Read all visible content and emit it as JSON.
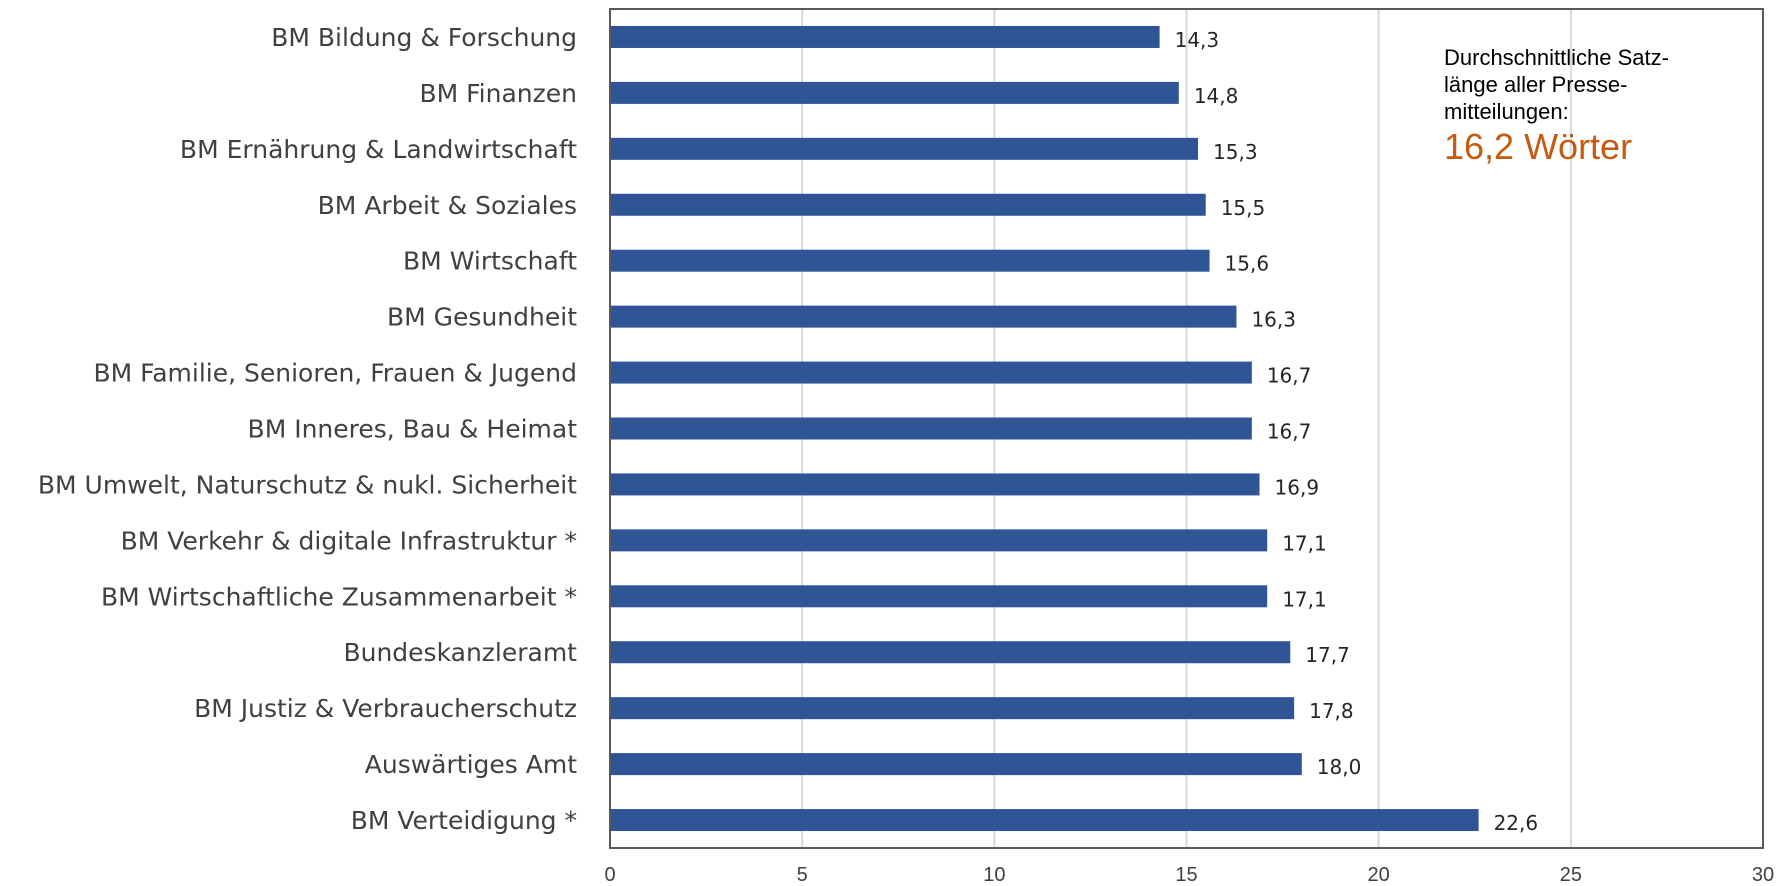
{
  "chart_data": {
    "type": "bar",
    "orientation": "horizontal",
    "categories": [
      "BM Bildung & Forschung",
      "BM Finanzen",
      "BM Ernährung & Landwirtschaft",
      "BM Arbeit & Soziales",
      "BM Wirtschaft",
      "BM Gesundheit",
      "BM Familie, Senioren, Frauen & Jugend",
      "BM Inneres,  Bau & Heimat",
      "BM Umwelt, Naturschutz & nukl. Sicherheit",
      "BM Verkehr & digitale Infrastruktur *",
      "BM Wirtschaftliche Zusammenarbeit *",
      "Bundeskanzleramt",
      "BM Justiz & Verbraucherschutz",
      "Auswärtiges Amt",
      "BM Verteidigung *"
    ],
    "values": [
      14.3,
      14.8,
      15.3,
      15.5,
      15.6,
      16.3,
      16.7,
      16.7,
      16.9,
      17.1,
      17.1,
      17.7,
      17.8,
      18.0,
      22.6
    ],
    "value_labels": [
      "14,3",
      "14,8",
      "15,3",
      "15,5",
      "15,6",
      "16,3",
      "16,7",
      "16,7",
      "16,9",
      "17,1",
      "17,1",
      "17,7",
      "17,8",
      "18,0",
      "22,6"
    ],
    "xlim": [
      0,
      30
    ],
    "xticks": [
      0,
      5,
      10,
      15,
      20,
      25,
      30
    ],
    "xtick_labels": [
      "0",
      "5",
      "10",
      "15",
      "20",
      "25",
      "30"
    ],
    "title": "",
    "xlabel": "",
    "ylabel": "",
    "grid": "vertical",
    "legend": "none",
    "annotation": {
      "text": "Durchschnittliche Satz-länge aller Presse-mitteilungen:",
      "lines": [
        "Durchschnittliche Satz-",
        "länge aller Presse-",
        "mitteilungen:"
      ],
      "highlight": "16,2 Wörter"
    }
  },
  "colors": {
    "bar": "#2f5597",
    "grid": "#d9d9d9",
    "axis": "#595959",
    "category_text": "#404040",
    "value_text": "#262626",
    "highlight": "#c55a11"
  }
}
